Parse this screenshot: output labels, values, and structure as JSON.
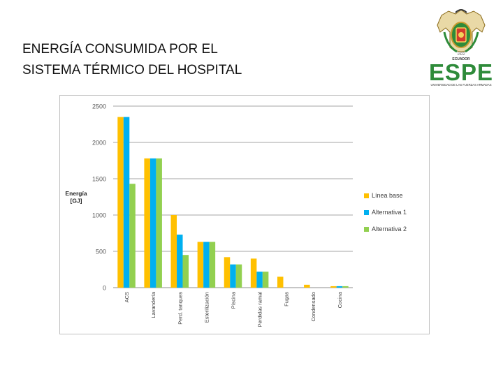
{
  "slide": {
    "title_line1": "ENERGÍA CONSUMIDA POR EL",
    "title_line2": "SISTEMA TÉRMICO DEL HOSPITAL"
  },
  "logo": {
    "name": "ESPE",
    "country": "ECUADOR",
    "tagline": "UNIVERSIDAD DE LAS FUERZAS ARMADAS",
    "brand_color": "#2e8b3a",
    "gold_color": "#c99a2e"
  },
  "chart_data": {
    "type": "bar",
    "title": "",
    "ylabel": "Energía [GJ]",
    "xlabel": "",
    "ylim": [
      0,
      2500
    ],
    "yticks": [
      0,
      500,
      1000,
      1500,
      2000,
      2500
    ],
    "grid": true,
    "legend_position": "right",
    "categories": [
      "ACS",
      "Lavandería",
      "Perd. tanques",
      "Esterilización",
      "Piscina",
      "Perdidas ramal",
      "Fugas",
      "Condensado",
      "Cocina"
    ],
    "series": [
      {
        "name": "Línea base",
        "color": "#ffc000",
        "values": [
          2350,
          1780,
          1000,
          630,
          420,
          400,
          150,
          40,
          20
        ]
      },
      {
        "name": "Alternativa 1",
        "color": "#00b0f0",
        "values": [
          2350,
          1780,
          730,
          630,
          320,
          220,
          0,
          0,
          20
        ]
      },
      {
        "name": "Alternativa 2",
        "color": "#92d050",
        "values": [
          1430,
          1780,
          450,
          630,
          320,
          220,
          0,
          0,
          20
        ]
      }
    ]
  }
}
